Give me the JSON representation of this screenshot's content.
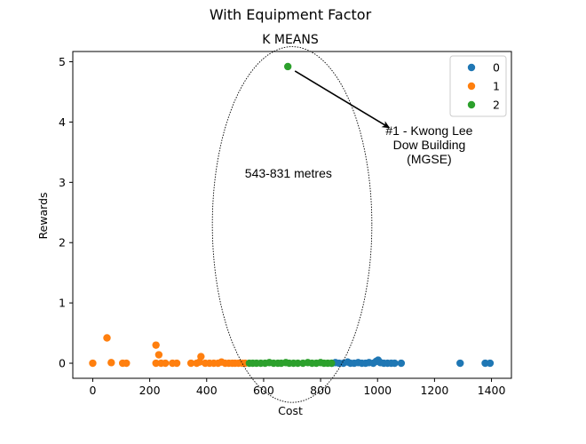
{
  "figure": {
    "suptitle": "With Equipment Factor"
  },
  "chart_data": {
    "type": "scatter",
    "title": "K MEANS",
    "xlabel": "Cost",
    "ylabel": "Rewards",
    "xlim": [
      -70,
      1470
    ],
    "ylim": [
      -0.25,
      5.17
    ],
    "xticks": [
      0,
      200,
      400,
      600,
      800,
      1000,
      1200,
      1400
    ],
    "yticks": [
      0,
      1,
      2,
      3,
      4,
      5
    ],
    "grid": false,
    "legend_position": "top-right",
    "series": [
      {
        "name": "0",
        "color": "#1f77b4",
        "points": [
          [
            840,
            0.0
          ],
          [
            852,
            0.01
          ],
          [
            865,
            0.0
          ],
          [
            880,
            0.0
          ],
          [
            895,
            0.02
          ],
          [
            905,
            0.0
          ],
          [
            918,
            0.0
          ],
          [
            932,
            0.01
          ],
          [
            945,
            0.0
          ],
          [
            958,
            0.0
          ],
          [
            970,
            0.01
          ],
          [
            985,
            0.0
          ],
          [
            995,
            0.03
          ],
          [
            1002,
            0.05
          ],
          [
            1010,
            0.01
          ],
          [
            1022,
            0.0
          ],
          [
            1035,
            0.0
          ],
          [
            1048,
            0.0
          ],
          [
            1060,
            0.0
          ],
          [
            1083,
            0.0
          ],
          [
            1290,
            0.0
          ],
          [
            1378,
            0.0
          ],
          [
            1395,
            0.0
          ]
        ]
      },
      {
        "name": "1",
        "color": "#ff7f0e",
        "points": [
          [
            0,
            0.0
          ],
          [
            50,
            0.42
          ],
          [
            65,
            0.01
          ],
          [
            105,
            0.0
          ],
          [
            118,
            0.0
          ],
          [
            222,
            0.3
          ],
          [
            232,
            0.14
          ],
          [
            222,
            0.0
          ],
          [
            240,
            0.0
          ],
          [
            255,
            0.0
          ],
          [
            280,
            0.0
          ],
          [
            295,
            0.0
          ],
          [
            345,
            0.0
          ],
          [
            365,
            0.0
          ],
          [
            375,
            0.02
          ],
          [
            380,
            0.11
          ],
          [
            395,
            0.0
          ],
          [
            410,
            0.0
          ],
          [
            425,
            0.0
          ],
          [
            440,
            0.0
          ],
          [
            452,
            0.02
          ],
          [
            465,
            0.0
          ],
          [
            478,
            0.0
          ],
          [
            490,
            0.0
          ],
          [
            500,
            0.0
          ],
          [
            512,
            0.0
          ],
          [
            525,
            0.0
          ],
          [
            535,
            0.0
          ]
        ]
      },
      {
        "name": "2",
        "color": "#2ca02c",
        "points": [
          [
            685,
            4.92
          ],
          [
            550,
            0.0
          ],
          [
            562,
            0.0
          ],
          [
            575,
            0.0
          ],
          [
            590,
            0.0
          ],
          [
            605,
            0.0
          ],
          [
            620,
            0.01
          ],
          [
            635,
            0.0
          ],
          [
            650,
            0.0
          ],
          [
            662,
            0.0
          ],
          [
            678,
            0.01
          ],
          [
            690,
            0.0
          ],
          [
            705,
            0.0
          ],
          [
            720,
            0.0
          ],
          [
            738,
            0.0
          ],
          [
            755,
            0.01
          ],
          [
            770,
            0.0
          ],
          [
            785,
            0.0
          ],
          [
            800,
            0.01
          ],
          [
            812,
            0.0
          ],
          [
            825,
            0.0
          ],
          [
            838,
            0.0
          ]
        ]
      }
    ],
    "annotations": [
      {
        "text_lines": [
          "#1 - Kwong Lee",
          "Dow Building",
          "(MGSE)"
        ],
        "xy": [
          685,
          4.92
        ],
        "xytext": [
          1010,
          3.95
        ],
        "arrow": true
      },
      {
        "text_lines": [
          "543-831 metres"
        ],
        "at": [
          687,
          3.15
        ]
      }
    ],
    "highlight_ellipse": {
      "center": [
        700,
        2.3
      ],
      "x_radius": 280,
      "y_radius": 2.95,
      "style": "dotted"
    }
  }
}
